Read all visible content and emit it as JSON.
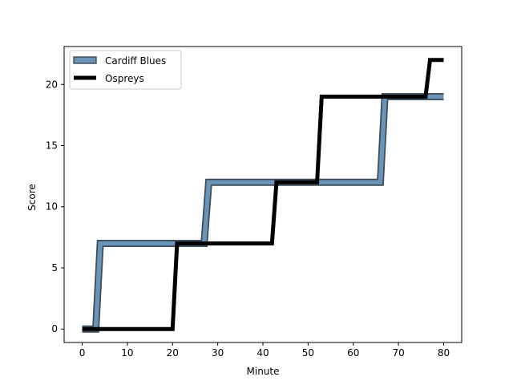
{
  "chart_data": {
    "type": "line",
    "title": "",
    "xlabel": "Minute",
    "ylabel": "Score",
    "xlim": [
      -4,
      84
    ],
    "ylim": [
      -1.1,
      23.1
    ],
    "xticks": [
      0,
      10,
      20,
      30,
      40,
      50,
      60,
      70,
      80
    ],
    "yticks": [
      0,
      5,
      10,
      15,
      20
    ],
    "grid": false,
    "legend_position": "top-left",
    "series": [
      {
        "name": "Cardiff Blues",
        "color": "#6a93b8",
        "edge_color": "#3d4a57",
        "style": "outlined-band",
        "points": [
          [
            0,
            0
          ],
          [
            3,
            0
          ],
          [
            4,
            7
          ],
          [
            27,
            7
          ],
          [
            28,
            12
          ],
          [
            66,
            12
          ],
          [
            67,
            19
          ],
          [
            80,
            19
          ]
        ]
      },
      {
        "name": "Ospreys",
        "color": "#000000",
        "style": "thick-line",
        "points": [
          [
            0,
            0
          ],
          [
            20,
            0
          ],
          [
            21,
            7
          ],
          [
            42,
            7
          ],
          [
            43,
            12
          ],
          [
            52,
            12
          ],
          [
            53,
            19
          ],
          [
            76,
            19
          ],
          [
            77,
            22
          ],
          [
            80,
            22
          ]
        ]
      }
    ]
  }
}
